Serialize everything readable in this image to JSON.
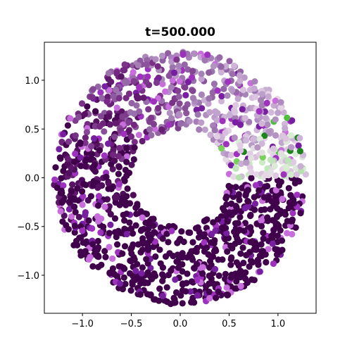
{
  "chart_data": {
    "type": "scatter",
    "title": "t=500.000",
    "xlabel": "",
    "ylabel": "",
    "xlim": [
      -1.39,
      1.39
    ],
    "ylim": [
      -1.39,
      1.39
    ],
    "xticks": [
      -1.0,
      -0.5,
      0.0,
      0.5,
      1.0
    ],
    "xtick_labels": [
      "−1.0",
      "−0.5",
      "0.0",
      "0.5",
      "1.0"
    ],
    "yticks": [
      -1.0,
      -0.5,
      0.0,
      0.5,
      1.0
    ],
    "ytick_labels": [
      "−1.0",
      "−0.5",
      "0.0",
      "0.5",
      "1.0"
    ],
    "grid": false,
    "legend": "none",
    "colormap_note": "PRGn",
    "ring": {
      "inner_radius": 0.5,
      "outer_radius": 1.3,
      "point_count": 1500
    },
    "colors": {
      "dark_purple": "#40004b",
      "purple": "#762a83",
      "mid_purple": "#9970ab",
      "light_purple": "#c2a5cf",
      "pale": "#e7d4e8",
      "pale_green": "#d9f0d3",
      "light_green": "#a6dba0",
      "mid_green": "#5aae61",
      "green": "#1b7837",
      "dark_green": "#00441b"
    }
  }
}
